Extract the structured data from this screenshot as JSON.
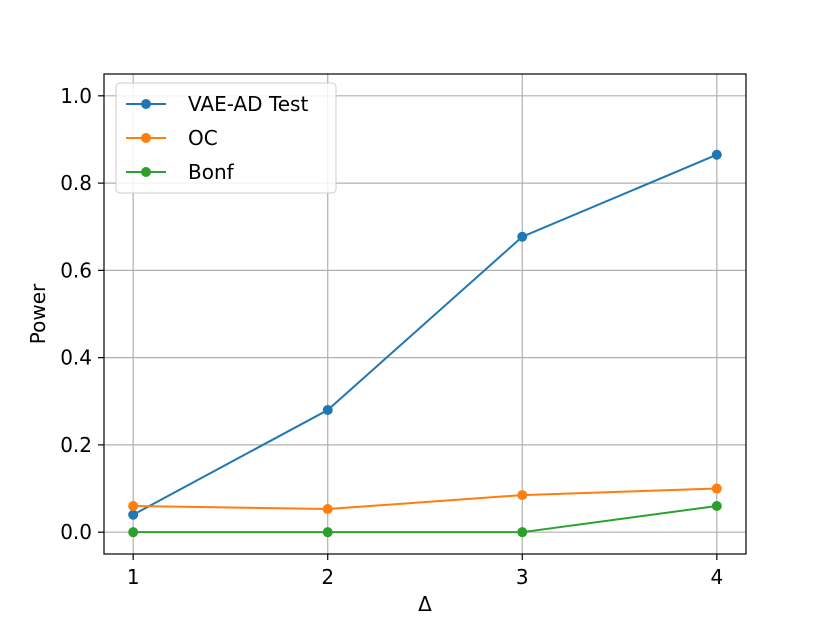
{
  "chart_data": {
    "type": "line",
    "title": "",
    "xlabel": "Δ",
    "ylabel": "Power",
    "x": [
      1,
      2,
      3,
      4
    ],
    "xlim": [
      0.85,
      4.15
    ],
    "ylim": [
      -0.05,
      1.05
    ],
    "xticks": [
      1,
      2,
      3,
      4
    ],
    "yticks": [
      0.0,
      0.2,
      0.4,
      0.6,
      0.8,
      1.0
    ],
    "ytick_labels": [
      "0.0",
      "0.2",
      "0.4",
      "0.6",
      "0.8",
      "1.0"
    ],
    "xtick_labels": [
      "1",
      "2",
      "3",
      "4"
    ],
    "grid": true,
    "legend_position": "top-left",
    "series": [
      {
        "name": "VAE-AD Test",
        "color": "#1f77b4",
        "values": [
          0.04,
          0.28,
          0.677,
          0.865
        ]
      },
      {
        "name": "OC",
        "color": "#ff7f0e",
        "values": [
          0.06,
          0.053,
          0.085,
          0.1
        ]
      },
      {
        "name": "Bonf",
        "color": "#2ca02c",
        "values": [
          0.0,
          0.0,
          0.0,
          0.06
        ]
      }
    ]
  }
}
